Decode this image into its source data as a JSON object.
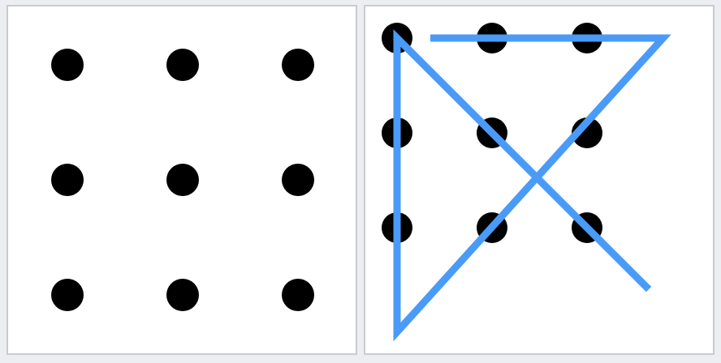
{
  "colors": {
    "background": "#eceef1",
    "panel": "#ffffff",
    "panel_border": "#c9cbd0",
    "dot": "#000000",
    "line": "#4a9bf7"
  },
  "puzzle": {
    "grid": {
      "rows": 3,
      "cols": 3
    },
    "left_panel": {
      "state": "unsolved"
    },
    "right_panel": {
      "state": "solved",
      "path_cells": [
        [
          0.35,
          0.0
        ],
        [
          2.8,
          0.0
        ],
        [
          0.0,
          3.1
        ],
        [
          0.0,
          0.0
        ],
        [
          2.65,
          2.65
        ]
      ]
    }
  }
}
